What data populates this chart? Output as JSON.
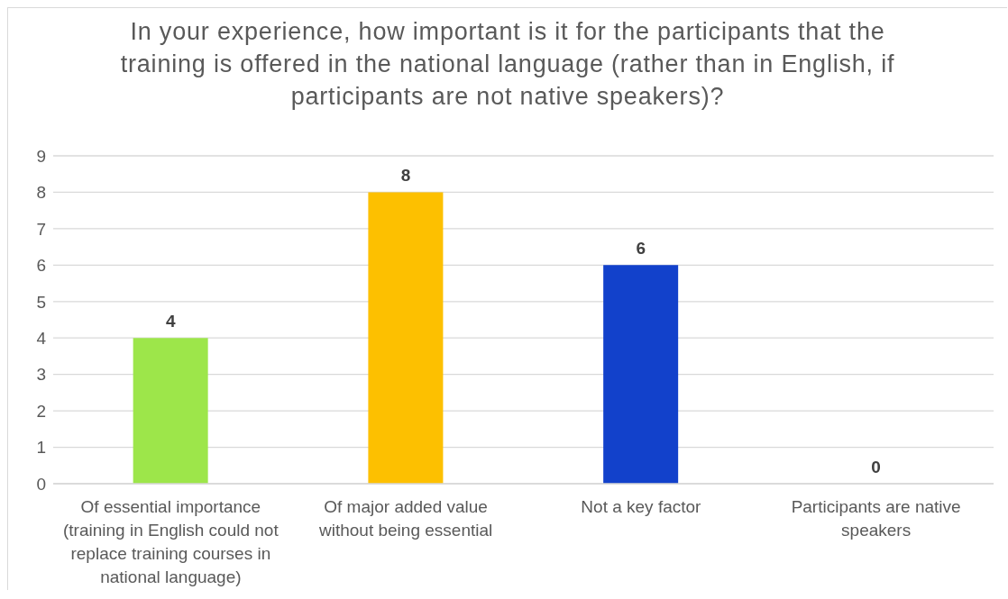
{
  "chart_data": {
    "type": "bar",
    "title": "In your experience, how important is it for the participants that the training is offered in the national language (rather than in English, if participants are not native speakers)?",
    "categories": [
      "Of essential importance (training in English could not replace training courses in national language)",
      "Of major added value without being essential",
      "Not a key factor",
      "Participants are native speakers"
    ],
    "values": [
      4,
      8,
      6,
      0
    ],
    "colors": [
      "#9de64a",
      "#fdc000",
      "#1241cb",
      null
    ],
    "ylim": [
      0,
      9
    ],
    "yticks": [
      0,
      1,
      2,
      3,
      4,
      5,
      6,
      7,
      8,
      9
    ],
    "grid": "y",
    "data_labels": true
  }
}
